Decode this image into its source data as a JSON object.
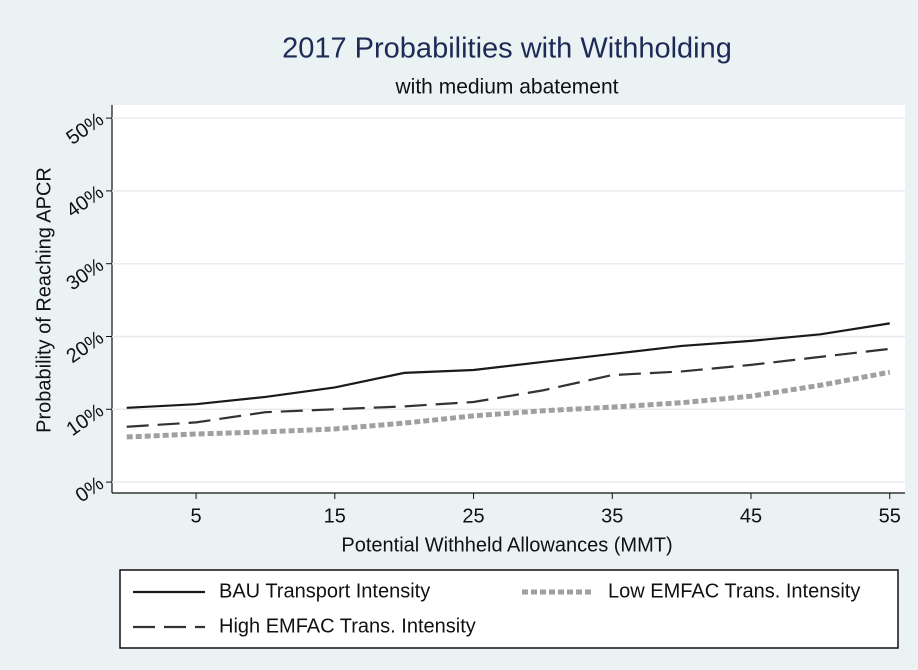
{
  "chart_data": {
    "type": "line",
    "title": "2017 Probabilities with Withholding",
    "subtitle": "with medium abatement",
    "x_label": "Potential Withheld Allowances (MMT)",
    "y_label": "Probability of Reaching APCR",
    "x": [
      0,
      5,
      10,
      15,
      20,
      25,
      30,
      35,
      40,
      45,
      50,
      55
    ],
    "series": [
      {
        "name": "BAU Transport Intensity",
        "color": "#1a1a1a",
        "style": "solid",
        "values": [
          10.2,
          10.7,
          11.7,
          13.0,
          15.0,
          15.4,
          16.5,
          17.6,
          18.7,
          19.4,
          20.3,
          21.8
        ]
      },
      {
        "name": "Low EMFAC Trans. Intensity",
        "color": "#a0a0a0",
        "style": "dotted",
        "values": [
          6.2,
          6.6,
          6.9,
          7.3,
          8.1,
          9.1,
          9.8,
          10.3,
          10.9,
          11.8,
          13.3,
          15.1
        ]
      },
      {
        "name": "High EMFAC Trans. Intensity",
        "color": "#333333",
        "style": "dashed",
        "values": [
          7.6,
          8.2,
          9.6,
          10.0,
          10.4,
          11.0,
          12.6,
          14.7,
          15.2,
          16.1,
          17.2,
          18.3
        ]
      }
    ],
    "xlim": [
      -1.06,
      56.1
    ],
    "ylim": [
      -1.5,
      51.8
    ],
    "xticks": [
      5,
      15,
      25,
      35,
      45,
      55
    ],
    "yticks": [
      {
        "value": 0,
        "label": "0%"
      },
      {
        "value": 10,
        "label": "10%"
      },
      {
        "value": 20,
        "label": "20%"
      },
      {
        "value": 30,
        "label": "30%"
      },
      {
        "value": 40,
        "label": "40%"
      },
      {
        "value": 50,
        "label": "50%"
      }
    ],
    "grid": true,
    "legend": "bottom"
  }
}
